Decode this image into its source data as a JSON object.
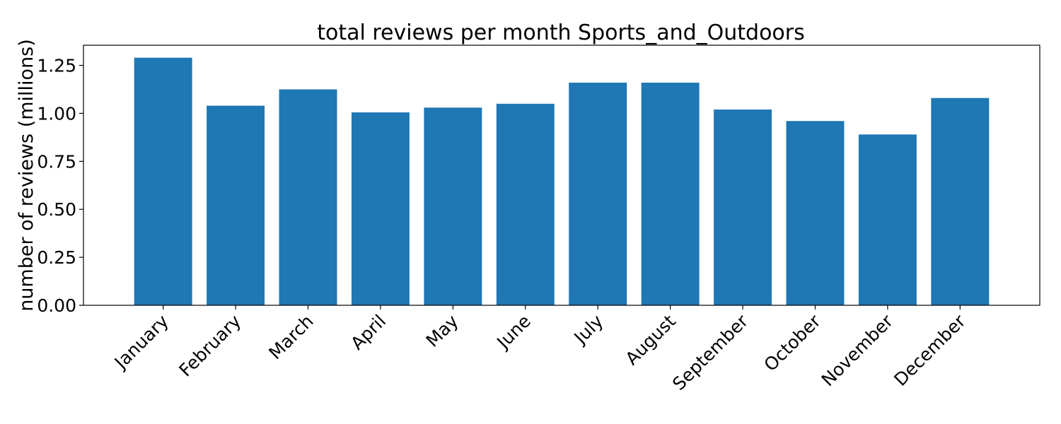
{
  "chart_data": {
    "type": "bar",
    "title": "total reviews per month Sports_and_Outdoors",
    "xlabel": "",
    "ylabel": "number of reviews (millions)",
    "categories": [
      "January",
      "February",
      "March",
      "April",
      "May",
      "June",
      "July",
      "August",
      "September",
      "October",
      "November",
      "December"
    ],
    "values": [
      1.29,
      1.04,
      1.125,
      1.005,
      1.03,
      1.05,
      1.16,
      1.16,
      1.02,
      0.96,
      0.89,
      1.08
    ],
    "ylim": [
      0,
      1.355
    ],
    "yticks": [
      0.0,
      0.25,
      0.5,
      0.75,
      1.0,
      1.25
    ],
    "ytick_labels": [
      "0.00",
      "0.25",
      "0.50",
      "0.75",
      "1.00",
      "1.25"
    ],
    "grid": false,
    "bar_color": "#1f77b4"
  }
}
